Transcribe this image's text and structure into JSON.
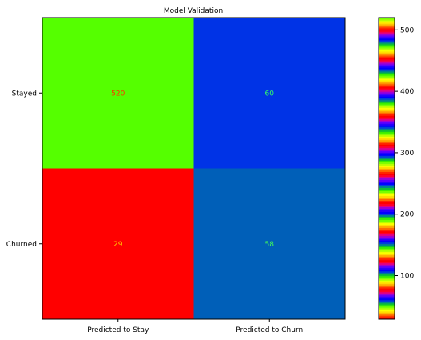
{
  "chart_data": {
    "type": "heatmap",
    "title": "Model Validation",
    "xlabel": "",
    "ylabel": "",
    "x_categories": [
      "Predicted to Stay",
      "Predicted to Churn"
    ],
    "y_categories": [
      "Stayed",
      "Churned"
    ],
    "matrix": [
      [
        520,
        60
      ],
      [
        29,
        58
      ]
    ],
    "cells": [
      {
        "row": 0,
        "col": 0,
        "value": "520",
        "color": "#55ff00",
        "label_color": "#ff3300"
      },
      {
        "row": 0,
        "col": 1,
        "value": "60",
        "color": "#0033e6",
        "label_color": "#33ff66"
      },
      {
        "row": 1,
        "col": 0,
        "value": "29",
        "color": "#ff0000",
        "label_color": "#ffcc00"
      },
      {
        "row": 1,
        "col": 1,
        "value": "58",
        "color": "#005fb8",
        "label_color": "#44ff55"
      }
    ],
    "colorbar": {
      "ticks": [
        "100",
        "200",
        "300",
        "400",
        "500"
      ],
      "range": [
        29,
        520
      ],
      "colormap": "prism"
    },
    "grid": false,
    "legend": "none"
  }
}
